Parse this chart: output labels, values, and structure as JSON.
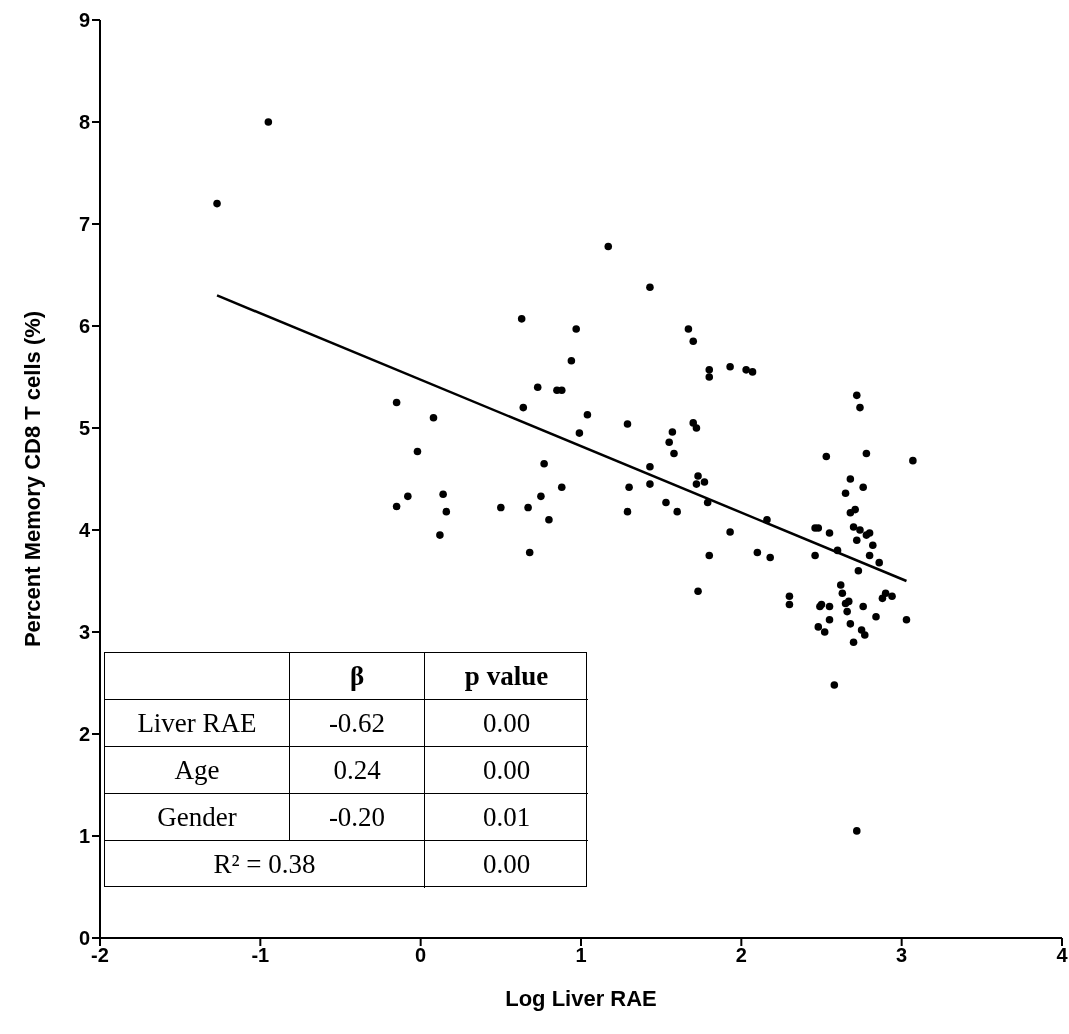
{
  "chart_data": {
    "type": "scatter",
    "xlabel": "Log Liver RAE",
    "ylabel": "Percent Memory CD8 T cells (%)",
    "xlim": [
      -2,
      4
    ],
    "xticks": [
      -2,
      -1,
      0,
      1,
      2,
      3,
      4
    ],
    "ylim": [
      0,
      9
    ],
    "yticks": [
      0,
      1,
      2,
      3,
      4,
      5,
      6,
      7,
      8,
      9
    ],
    "marker": "circle",
    "annotations": [
      "β",
      "p value",
      "Liver RAE",
      "-0.62",
      "0.00",
      "Age",
      "0.24",
      "0.00",
      "Gender",
      "-0.20",
      "0.01",
      "R² = 0.38",
      "0.00"
    ],
    "series": [
      {
        "color": "#000000",
        "x": [
          -1.27,
          -0.95,
          -0.15,
          -0.15,
          -0.08,
          -0.02,
          0.08,
          0.12,
          0.14,
          0.16,
          0.5,
          0.63,
          0.64,
          0.67,
          0.68,
          0.73,
          0.75,
          0.77,
          0.8,
          0.85,
          0.88,
          0.88,
          0.94,
          0.97,
          0.99,
          1.04,
          1.17,
          1.29,
          1.29,
          1.3,
          1.43,
          1.43,
          1.43,
          1.53,
          1.55,
          1.57,
          1.58,
          1.6,
          1.67,
          1.7,
          1.7,
          1.72,
          1.72,
          1.73,
          1.73,
          1.77,
          1.79,
          1.8,
          1.8,
          1.8,
          1.93,
          1.93,
          2.03,
          2.07,
          2.1,
          2.16,
          2.18,
          2.3,
          2.3,
          2.46,
          2.48,
          2.46,
          2.48,
          2.5,
          2.49,
          2.52,
          2.53,
          2.55,
          2.55,
          2.55,
          2.58,
          2.6,
          2.62,
          2.63,
          2.65,
          2.65,
          2.66,
          2.67,
          2.68,
          2.68,
          2.68,
          2.7,
          2.7,
          2.71,
          2.72,
          2.72,
          2.73,
          2.74,
          2.74,
          2.75,
          2.76,
          2.76,
          2.77,
          2.78,
          2.78,
          2.8,
          2.8,
          2.82,
          2.84,
          2.86,
          2.88,
          2.9,
          2.94,
          3.03,
          3.07,
          2.72
        ],
        "values": [
          7.2,
          8.0,
          5.25,
          4.23,
          4.33,
          4.77,
          5.1,
          3.95,
          4.35,
          4.18,
          4.22,
          6.07,
          5.2,
          4.22,
          3.78,
          5.4,
          4.33,
          4.65,
          4.1,
          5.37,
          5.37,
          4.42,
          5.66,
          5.97,
          4.95,
          5.13,
          6.78,
          5.04,
          4.18,
          4.42,
          6.38,
          4.62,
          4.45,
          4.27,
          4.86,
          4.96,
          4.75,
          4.18,
          5.97,
          5.85,
          5.05,
          5.0,
          4.45,
          4.53,
          3.4,
          4.47,
          4.27,
          5.57,
          5.5,
          3.75,
          3.98,
          5.6,
          5.57,
          5.55,
          3.78,
          4.1,
          3.73,
          3.27,
          3.35,
          4.02,
          4.02,
          3.75,
          3.05,
          3.27,
          3.25,
          3.0,
          4.72,
          3.25,
          3.97,
          3.12,
          2.48,
          3.8,
          3.46,
          3.38,
          4.36,
          3.28,
          3.2,
          3.3,
          4.17,
          3.08,
          4.5,
          4.03,
          2.9,
          4.2,
          5.32,
          3.9,
          3.6,
          5.2,
          4.0,
          3.02,
          3.25,
          4.42,
          2.97,
          4.75,
          3.95,
          3.97,
          3.75,
          3.85,
          3.15,
          3.68,
          3.33,
          3.38,
          3.35,
          3.12,
          4.68,
          1.05
        ]
      },
      {
        "type": "line",
        "marker": "none",
        "color": "#000000",
        "x": [
          -1.27,
          3.03
        ],
        "values": [
          6.3,
          3.5
        ]
      }
    ]
  }
}
